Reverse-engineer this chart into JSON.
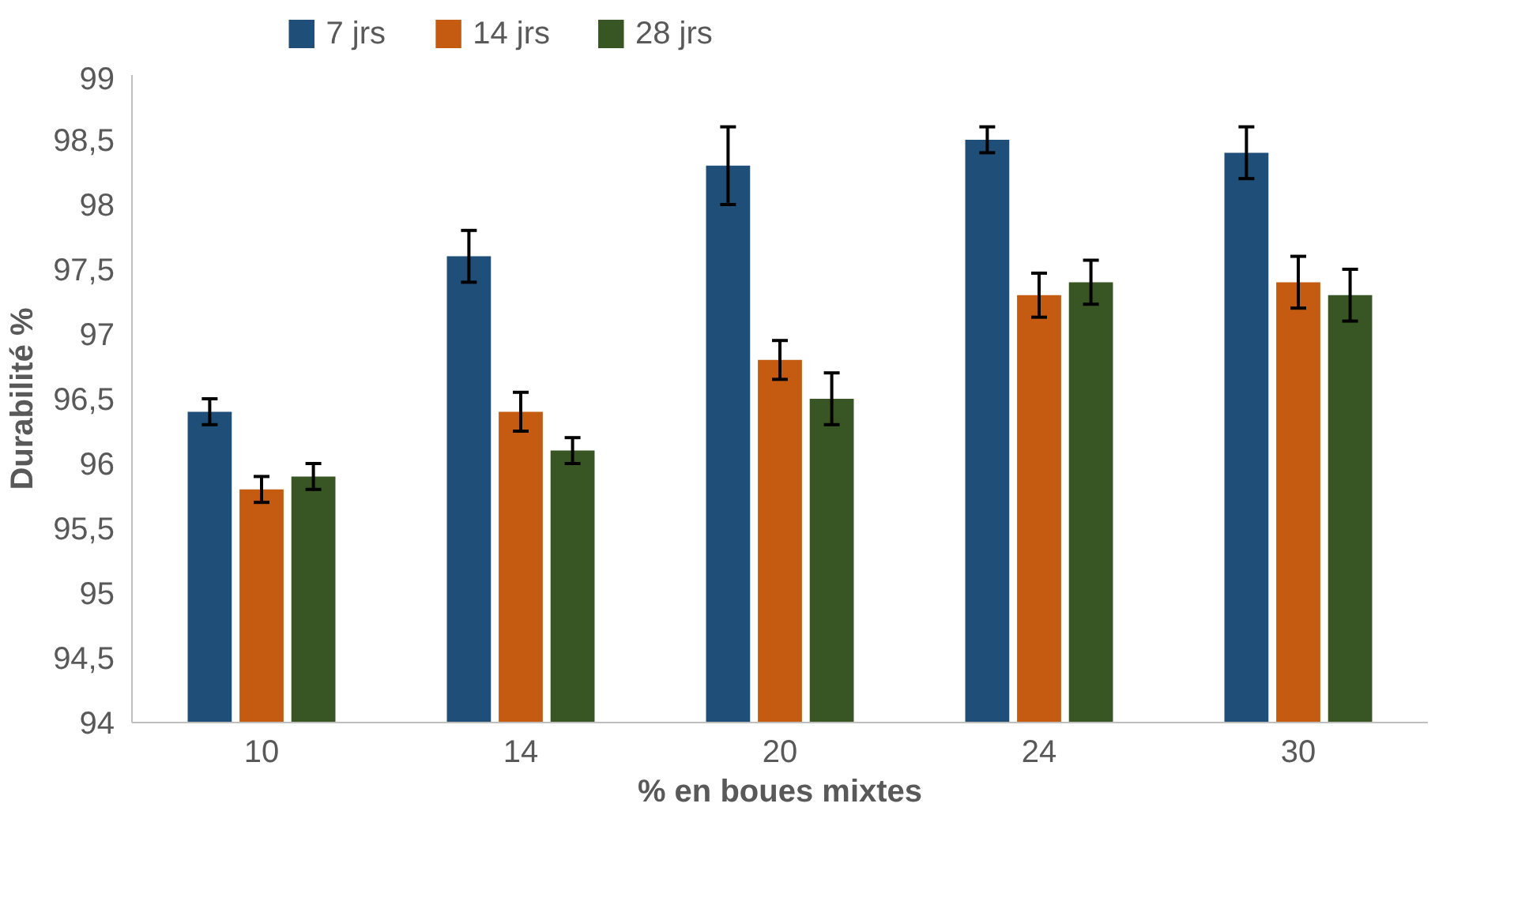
{
  "chart_data": {
    "type": "bar",
    "xlabel": "% en boues mixtes",
    "ylabel": "Durabilité %",
    "categories": [
      "10",
      "14",
      "20",
      "24",
      "30"
    ],
    "series": [
      {
        "name": "7 jrs",
        "color": "#1f4e79",
        "values": [
          96.4,
          97.6,
          98.3,
          98.5,
          98.4
        ],
        "errors": [
          0.1,
          0.2,
          0.3,
          0.1,
          0.2
        ]
      },
      {
        "name": "14 jrs",
        "color": "#c55a11",
        "values": [
          95.8,
          96.4,
          96.8,
          97.3,
          97.4
        ],
        "errors": [
          0.1,
          0.15,
          0.15,
          0.17,
          0.2
        ]
      },
      {
        "name": "28 jrs",
        "color": "#375623",
        "values": [
          95.9,
          96.1,
          96.5,
          97.4,
          97.3
        ],
        "errors": [
          0.1,
          0.1,
          0.2,
          0.17,
          0.2
        ]
      }
    ],
    "ylim": [
      94,
      99
    ],
    "yticks": [
      94,
      {
        "value": 94.5,
        "label": "94,5"
      },
      95,
      {
        "value": 95.5,
        "label": "95,5"
      },
      96,
      {
        "value": 96.5,
        "label": "96,5"
      },
      97,
      {
        "value": 97.5,
        "label": "97,5"
      },
      98,
      {
        "value": 98.5,
        "label": "98,5"
      },
      99
    ],
    "grid": false,
    "legend": "top left"
  }
}
